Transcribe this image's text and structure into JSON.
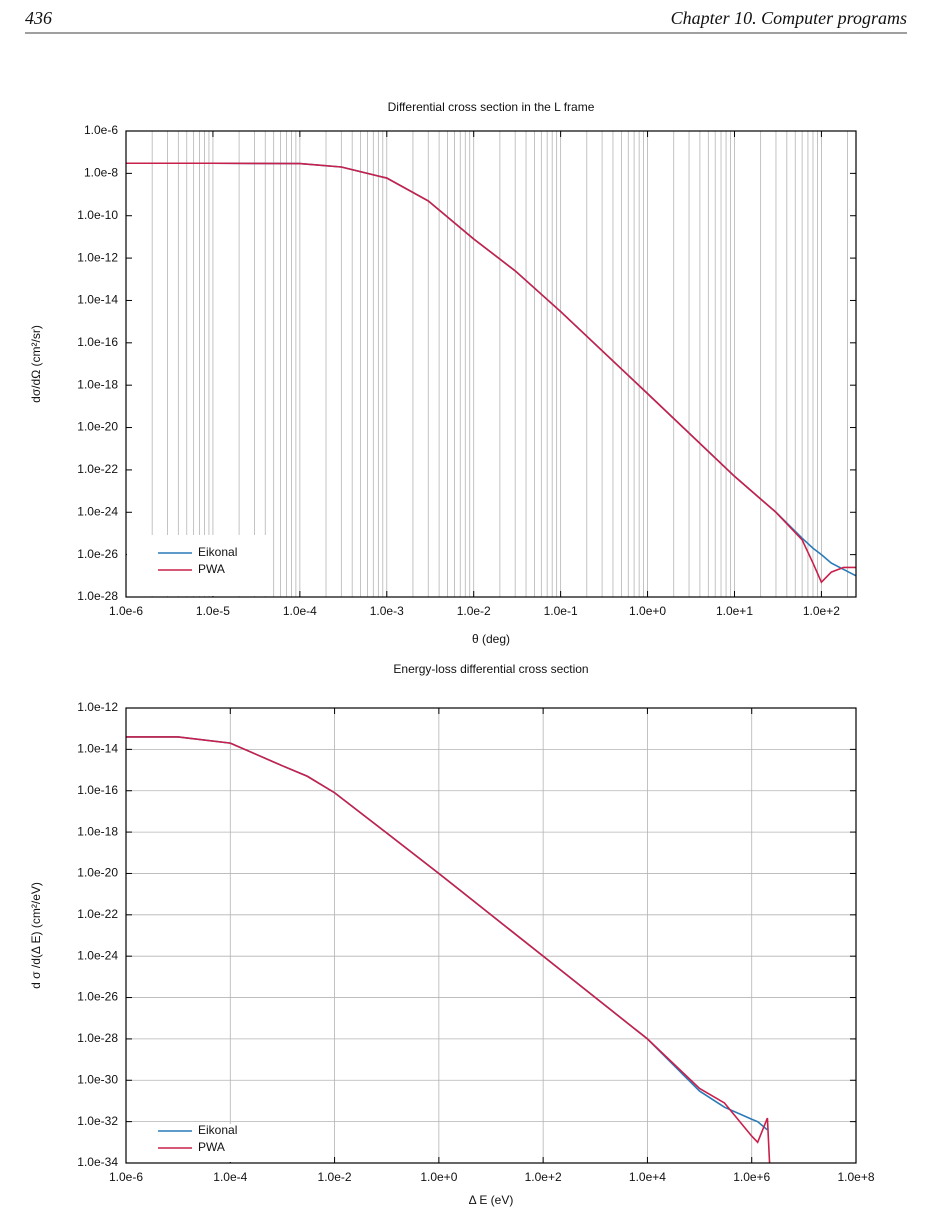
{
  "header": {
    "page_number": "436",
    "chapter": "Chapter 10.  Computer programs"
  },
  "chart_data": [
    {
      "type": "line",
      "title": "Differential cross section in the L frame",
      "xlabel": "θ  (deg)",
      "ylabel": "dσ/dΩ  (cm²/sr)",
      "xscale": "log",
      "yscale": "log",
      "grid": "x",
      "minor_grid": true,
      "legend": "lower left",
      "x": [
        1e-06,
        1e-05,
        0.0001,
        0.0003,
        0.001,
        0.003,
        0.01,
        0.03,
        0.1,
        1,
        10,
        30,
        60,
        80,
        100,
        130,
        180,
        250
      ],
      "series": [
        {
          "name": "Eikonal",
          "color": "#2a7ab9",
          "values": [
            3e-08,
            3e-08,
            2.9e-08,
            2e-08,
            6e-09,
            5e-10,
            8e-12,
            2.5e-13,
            3e-15,
            4e-19,
            5e-23,
            1e-24,
            6e-26,
            2e-26,
            1e-26,
            4e-27,
            2e-27,
            1e-27
          ]
        },
        {
          "name": "PWA",
          "color": "#c8204a",
          "values": [
            3e-08,
            3e-08,
            2.9e-08,
            2e-08,
            6e-09,
            5e-10,
            8e-12,
            2.5e-13,
            3e-15,
            4e-19,
            5e-23,
            1e-24,
            5e-26,
            4e-27,
            5e-28,
            1.5e-27,
            2.5e-27,
            2.5e-27
          ]
        }
      ],
      "xlim": [
        1e-06,
        250
      ],
      "ylim": [
        1e-28,
        1e-06
      ],
      "xticks": [
        {
          "value": 1e-06,
          "label": "1.0e-6"
        },
        {
          "value": 1e-05,
          "label": "1.0e-5"
        },
        {
          "value": 0.0001,
          "label": "1.0e-4"
        },
        {
          "value": 0.001,
          "label": "1.0e-3"
        },
        {
          "value": 0.01,
          "label": "1.0e-2"
        },
        {
          "value": 0.1,
          "label": "1.0e-1"
        },
        {
          "value": 1,
          "label": "1.0e+0"
        },
        {
          "value": 10,
          "label": "1.0e+1"
        },
        {
          "value": 100,
          "label": "1.0e+2"
        }
      ],
      "yticks": [
        {
          "value": 1e-28,
          "label": "1.0e-28"
        },
        {
          "value": 1e-26,
          "label": "1.0e-26"
        },
        {
          "value": 1e-24,
          "label": "1.0e-24"
        },
        {
          "value": 1e-22,
          "label": "1.0e-22"
        },
        {
          "value": 1e-20,
          "label": "1.0e-20"
        },
        {
          "value": 1e-18,
          "label": "1.0e-18"
        },
        {
          "value": 1e-16,
          "label": "1.0e-16"
        },
        {
          "value": 1e-14,
          "label": "1.0e-14"
        },
        {
          "value": 1e-12,
          "label": "1.0e-12"
        },
        {
          "value": 1e-10,
          "label": "1.0e-10"
        },
        {
          "value": 1e-08,
          "label": "1.0e-8"
        },
        {
          "value": 1e-06,
          "label": "1.0e-6"
        }
      ]
    },
    {
      "type": "line",
      "title": "Energy-loss differential cross section",
      "xlabel": "Δ E  (eV)",
      "ylabel": "d σ /d(Δ E)  (cm²/eV)",
      "xscale": "log",
      "yscale": "log",
      "grid": "both",
      "minor_grid": false,
      "legend": "lower left",
      "x": [
        1e-06,
        1e-05,
        0.0001,
        0.0003,
        0.001,
        0.003,
        0.01,
        0.1,
        1,
        100,
        10000.0,
        100000.0,
        300000.0,
        1000000.0,
        1300000.0,
        2000000.0,
        2200000.0
      ],
      "series": [
        {
          "name": "Eikonal",
          "color": "#2a7ab9",
          "values": [
            4e-14,
            4e-14,
            2e-14,
            6e-15,
            1.6e-15,
            5e-16,
            8e-17,
            9e-19,
            1e-20,
            1e-24,
            1e-28,
            3e-31,
            5e-32,
            1.3e-32,
            1e-32,
            4e-33,
            null
          ]
        },
        {
          "name": "PWA",
          "color": "#c8204a",
          "values": [
            4e-14,
            4e-14,
            2e-14,
            6e-15,
            1.6e-15,
            5e-16,
            8e-17,
            9e-19,
            1e-20,
            1e-24,
            1e-28,
            4e-31,
            8e-32,
            2e-33,
            1e-33,
            1.5e-32,
            1e-34
          ]
        }
      ],
      "xlim": [
        1e-06,
        100000000.0
      ],
      "ylim": [
        1e-34,
        1e-12
      ],
      "xticks": [
        {
          "value": 1e-06,
          "label": "1.0e-6"
        },
        {
          "value": 0.0001,
          "label": "1.0e-4"
        },
        {
          "value": 0.01,
          "label": "1.0e-2"
        },
        {
          "value": 1,
          "label": "1.0e+0"
        },
        {
          "value": 100,
          "label": "1.0e+2"
        },
        {
          "value": 10000.0,
          "label": "1.0e+4"
        },
        {
          "value": 1000000.0,
          "label": "1.0e+6"
        },
        {
          "value": 100000000.0,
          "label": "1.0e+8"
        }
      ],
      "yticks": [
        {
          "value": 1e-34,
          "label": "1.0e-34"
        },
        {
          "value": 1e-32,
          "label": "1.0e-32"
        },
        {
          "value": 1e-30,
          "label": "1.0e-30"
        },
        {
          "value": 1e-28,
          "label": "1.0e-28"
        },
        {
          "value": 1e-26,
          "label": "1.0e-26"
        },
        {
          "value": 1e-24,
          "label": "1.0e-24"
        },
        {
          "value": 1e-22,
          "label": "1.0e-22"
        },
        {
          "value": 1e-20,
          "label": "1.0e-20"
        },
        {
          "value": 1e-18,
          "label": "1.0e-18"
        },
        {
          "value": 1e-16,
          "label": "1.0e-16"
        },
        {
          "value": 1e-14,
          "label": "1.0e-14"
        },
        {
          "value": 1e-12,
          "label": "1.0e-12"
        }
      ]
    }
  ]
}
